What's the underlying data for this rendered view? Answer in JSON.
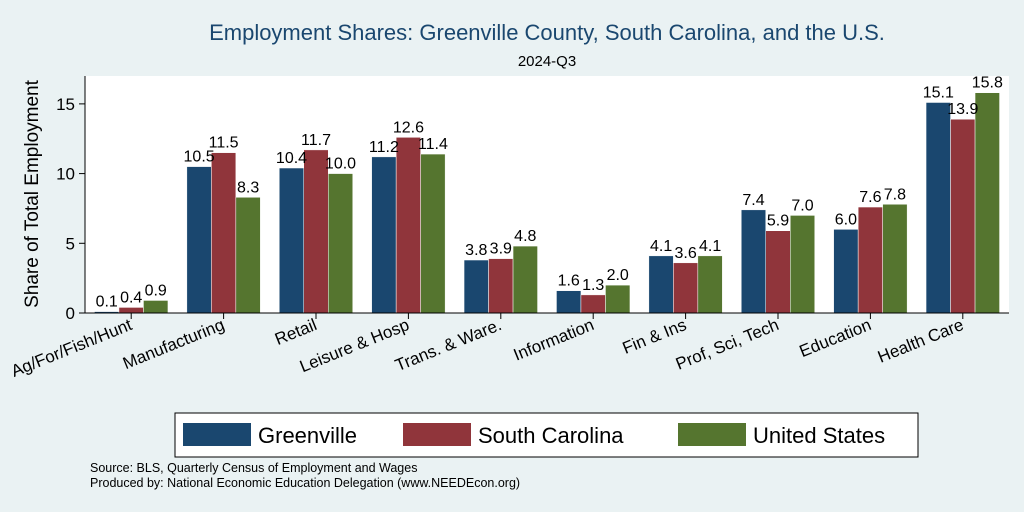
{
  "chart_data": {
    "type": "bar",
    "title": "Employment Shares: Greenville County, South Carolina, and the U.S.",
    "subtitle": "2024-Q3",
    "xlabel": "",
    "ylabel": "Share of Total Employment",
    "ylim": [
      0,
      17
    ],
    "yticks": [
      0,
      5,
      10,
      15
    ],
    "grid": false,
    "legend_position": "bottom",
    "categories": [
      "Ag/For/Fish/Hunt",
      "Manufacturing",
      "Retail",
      "Leisure & Hosp",
      "Trans. & Ware.",
      "Information",
      "Fin & Ins",
      "Prof, Sci, Tech",
      "Education",
      "Health Care"
    ],
    "series": [
      {
        "name": "Greenville",
        "color": "#1a476f",
        "values": [
          0.1,
          10.5,
          10.4,
          11.2,
          3.8,
          1.6,
          4.1,
          7.4,
          6.0,
          15.1
        ]
      },
      {
        "name": "South Carolina",
        "color": "#90353b",
        "values": [
          0.4,
          11.5,
          11.7,
          12.6,
          3.9,
          1.3,
          3.6,
          5.9,
          7.6,
          13.9
        ]
      },
      {
        "name": "United States",
        "color": "#55752f",
        "values": [
          0.9,
          8.3,
          10.0,
          11.4,
          4.8,
          2.0,
          4.1,
          7.0,
          7.8,
          15.8
        ]
      }
    ]
  },
  "footnotes": [
    "Source: BLS, Quarterly Census of Employment and Wages",
    "Produced by: National Economic Education Delegation (www.NEEDEcon.org)"
  ]
}
